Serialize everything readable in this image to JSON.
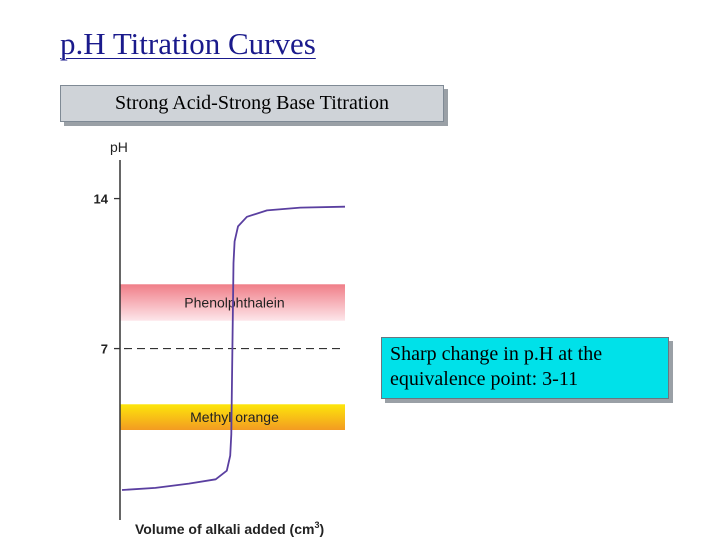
{
  "slide": {
    "title": "p.H Titration Curves",
    "subtitle": "Strong Acid-Strong Base Titration",
    "callout_line1": "Sharp change in p.H at the",
    "callout_line2": "equivalence point: 3-11"
  },
  "chart_data": {
    "type": "line",
    "title": "",
    "xlabel": "Volume of alkali added (cm",
    "xlabel_superscript": "3",
    "xlabel_close": ")",
    "ylabel": "pH",
    "y_ticks": [
      {
        "value": 14,
        "label": "14"
      },
      {
        "value": 7,
        "label": "7"
      }
    ],
    "ylim": [
      -1,
      15.8
    ],
    "xlim": [
      0,
      1
    ],
    "series": [
      {
        "points": [
          [
            0.0,
            0.4
          ],
          [
            0.15,
            0.5
          ],
          [
            0.3,
            0.7
          ],
          [
            0.42,
            0.9
          ],
          [
            0.47,
            1.3
          ],
          [
            0.485,
            2.0
          ],
          [
            0.49,
            3.0
          ],
          [
            0.495,
            7.0
          ],
          [
            0.5,
            11.0
          ],
          [
            0.505,
            12.0
          ],
          [
            0.52,
            12.7
          ],
          [
            0.56,
            13.15
          ],
          [
            0.65,
            13.45
          ],
          [
            0.8,
            13.58
          ],
          [
            1.0,
            13.62
          ]
        ],
        "color": "#5a3fa0"
      }
    ],
    "indicator_bands": [
      {
        "label": "Phenolphthalein",
        "range": [
          8.3,
          10.0
        ],
        "color_top": "#f07e88",
        "color_bottom": "#fde6ea"
      },
      {
        "label": "Methyl orange",
        "range": [
          3.2,
          4.4
        ],
        "color_top": "#fde60a",
        "color_bottom": "#f39b22"
      }
    ],
    "reference_line": {
      "value": 7,
      "style": "dashed"
    },
    "colors": {
      "axis": "#333333",
      "curve": "#5a3fa0"
    }
  }
}
